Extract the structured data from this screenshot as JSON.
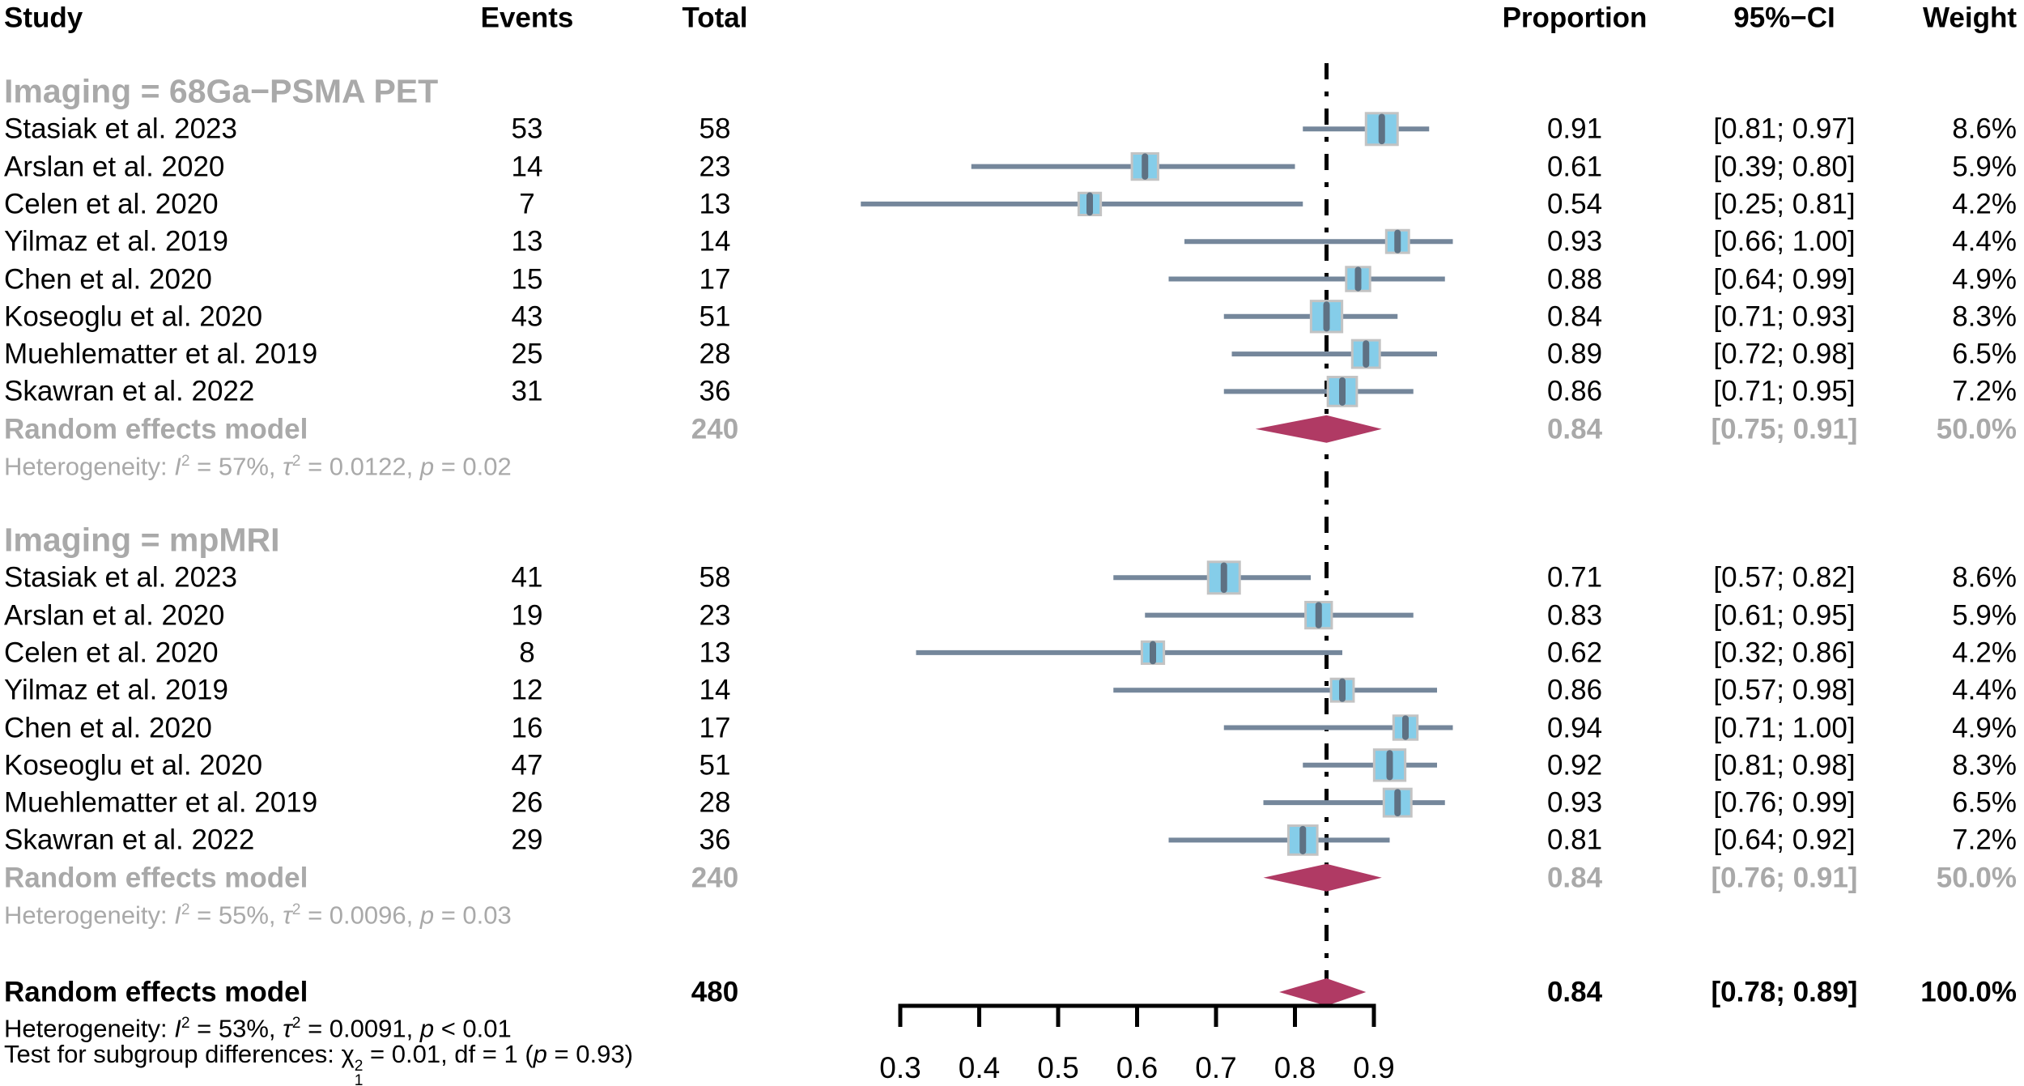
{
  "colors": {
    "square_fill": "#85CDE9",
    "square_border": "#C3C3C3",
    "ci_line": "#75879B",
    "marker": "#5E7183",
    "diamond": "#B03A64",
    "subgroup_text": "#A9A9A9",
    "axis": "#000000"
  },
  "chart_data": {
    "type": "forest",
    "title": "",
    "columns": {
      "study": "Study",
      "events": "Events",
      "total": "Total",
      "proportion": "Proportion",
      "ci": "95%−CI",
      "weight": "Weight"
    },
    "x_axis": {
      "ticks": [
        "0.3",
        "0.4",
        "0.5",
        "0.6",
        "0.7",
        "0.8",
        "0.9"
      ],
      "range": [
        0.3,
        0.9
      ],
      "grid": false
    },
    "reference_line": 0.84,
    "sections": [
      {
        "label": "Imaging = 68Ga−PSMA PET",
        "studies": [
          {
            "name": "Stasiak et al. 2023",
            "events": 53,
            "total": 58,
            "proportion": 0.91,
            "ci_lo": 0.81,
            "ci_hi": 0.97,
            "weight": 8.6
          },
          {
            "name": "Arslan et al. 2020",
            "events": 14,
            "total": 23,
            "proportion": 0.61,
            "ci_lo": 0.39,
            "ci_hi": 0.8,
            "weight": 5.9
          },
          {
            "name": "Celen et al. 2020",
            "events": 7,
            "total": 13,
            "proportion": 0.54,
            "ci_lo": 0.25,
            "ci_hi": 0.81,
            "weight": 4.2
          },
          {
            "name": "Yilmaz et al. 2019",
            "events": 13,
            "total": 14,
            "proportion": 0.93,
            "ci_lo": 0.66,
            "ci_hi": 1.0,
            "weight": 4.4
          },
          {
            "name": "Chen et al. 2020",
            "events": 15,
            "total": 17,
            "proportion": 0.88,
            "ci_lo": 0.64,
            "ci_hi": 0.99,
            "weight": 4.9
          },
          {
            "name": "Koseoglu et al. 2020",
            "events": 43,
            "total": 51,
            "proportion": 0.84,
            "ci_lo": 0.71,
            "ci_hi": 0.93,
            "weight": 8.3
          },
          {
            "name": "Muehlematter et al. 2019",
            "events": 25,
            "total": 28,
            "proportion": 0.89,
            "ci_lo": 0.72,
            "ci_hi": 0.98,
            "weight": 6.5
          },
          {
            "name": "Skawran et al. 2022",
            "events": 31,
            "total": 36,
            "proportion": 0.86,
            "ci_lo": 0.71,
            "ci_hi": 0.95,
            "weight": 7.2
          }
        ],
        "summary": {
          "label": "Random effects model",
          "total": 240,
          "proportion": 0.84,
          "ci_lo": 0.75,
          "ci_hi": 0.91,
          "weight": 50.0
        },
        "heterogeneity": {
          "prefix": "Heterogeneity: ",
          "i_sym": "I",
          "i_sup": "2",
          "after_i": " = 57%, ",
          "tau_sym": "τ",
          "tau_sup": "2",
          "after_tau": " = 0.0122, ",
          "p_sym": "p",
          "after_p": " = 0.02"
        }
      },
      {
        "label": "Imaging = mpMRI",
        "studies": [
          {
            "name": "Stasiak et al. 2023",
            "events": 41,
            "total": 58,
            "proportion": 0.71,
            "ci_lo": 0.57,
            "ci_hi": 0.82,
            "weight": 8.6
          },
          {
            "name": "Arslan et al. 2020",
            "events": 19,
            "total": 23,
            "proportion": 0.83,
            "ci_lo": 0.61,
            "ci_hi": 0.95,
            "weight": 5.9
          },
          {
            "name": "Celen et al. 2020",
            "events": 8,
            "total": 13,
            "proportion": 0.62,
            "ci_lo": 0.32,
            "ci_hi": 0.86,
            "weight": 4.2
          },
          {
            "name": "Yilmaz et al. 2019",
            "events": 12,
            "total": 14,
            "proportion": 0.86,
            "ci_lo": 0.57,
            "ci_hi": 0.98,
            "weight": 4.4
          },
          {
            "name": "Chen et al. 2020",
            "events": 16,
            "total": 17,
            "proportion": 0.94,
            "ci_lo": 0.71,
            "ci_hi": 1.0,
            "weight": 4.9
          },
          {
            "name": "Koseoglu et al. 2020",
            "events": 47,
            "total": 51,
            "proportion": 0.92,
            "ci_lo": 0.81,
            "ci_hi": 0.98,
            "weight": 8.3
          },
          {
            "name": "Muehlematter et al. 2019",
            "events": 26,
            "total": 28,
            "proportion": 0.93,
            "ci_lo": 0.76,
            "ci_hi": 0.99,
            "weight": 6.5
          },
          {
            "name": "Skawran et al. 2022",
            "events": 29,
            "total": 36,
            "proportion": 0.81,
            "ci_lo": 0.64,
            "ci_hi": 0.92,
            "weight": 7.2
          }
        ],
        "summary": {
          "label": "Random effects model",
          "total": 240,
          "proportion": 0.84,
          "ci_lo": 0.76,
          "ci_hi": 0.91,
          "weight": 50.0
        },
        "heterogeneity": {
          "prefix": "Heterogeneity: ",
          "i_sym": "I",
          "i_sup": "2",
          "after_i": " = 55%, ",
          "tau_sym": "τ",
          "tau_sup": "2",
          "after_tau": " = 0.0096, ",
          "p_sym": "p",
          "after_p": " = 0.03"
        }
      }
    ],
    "overall": {
      "label": "Random effects model",
      "total": 480,
      "proportion": 0.84,
      "ci_lo": 0.78,
      "ci_hi": 0.89,
      "ci_text": "[0.78; 0.89]",
      "weight_text": "100.0%"
    },
    "overall_heterogeneity": {
      "prefix": "Heterogeneity: ",
      "i_sym": "I",
      "i_sup": "2",
      "after_i": " = 53%, ",
      "tau_sym": "τ",
      "tau_sup": "2",
      "after_tau": " = 0.0091, ",
      "p_sym": "p",
      "after_p": " < 0.01"
    },
    "subgroup_test": {
      "prefix": "Test for subgroup differences: ",
      "chi_sym": "χ",
      "chi_sup": "2",
      "chi_sub": "1",
      "mid": " = 0.01, df = 1 (",
      "p_sym": "p",
      "end": " = 0.93)"
    }
  }
}
